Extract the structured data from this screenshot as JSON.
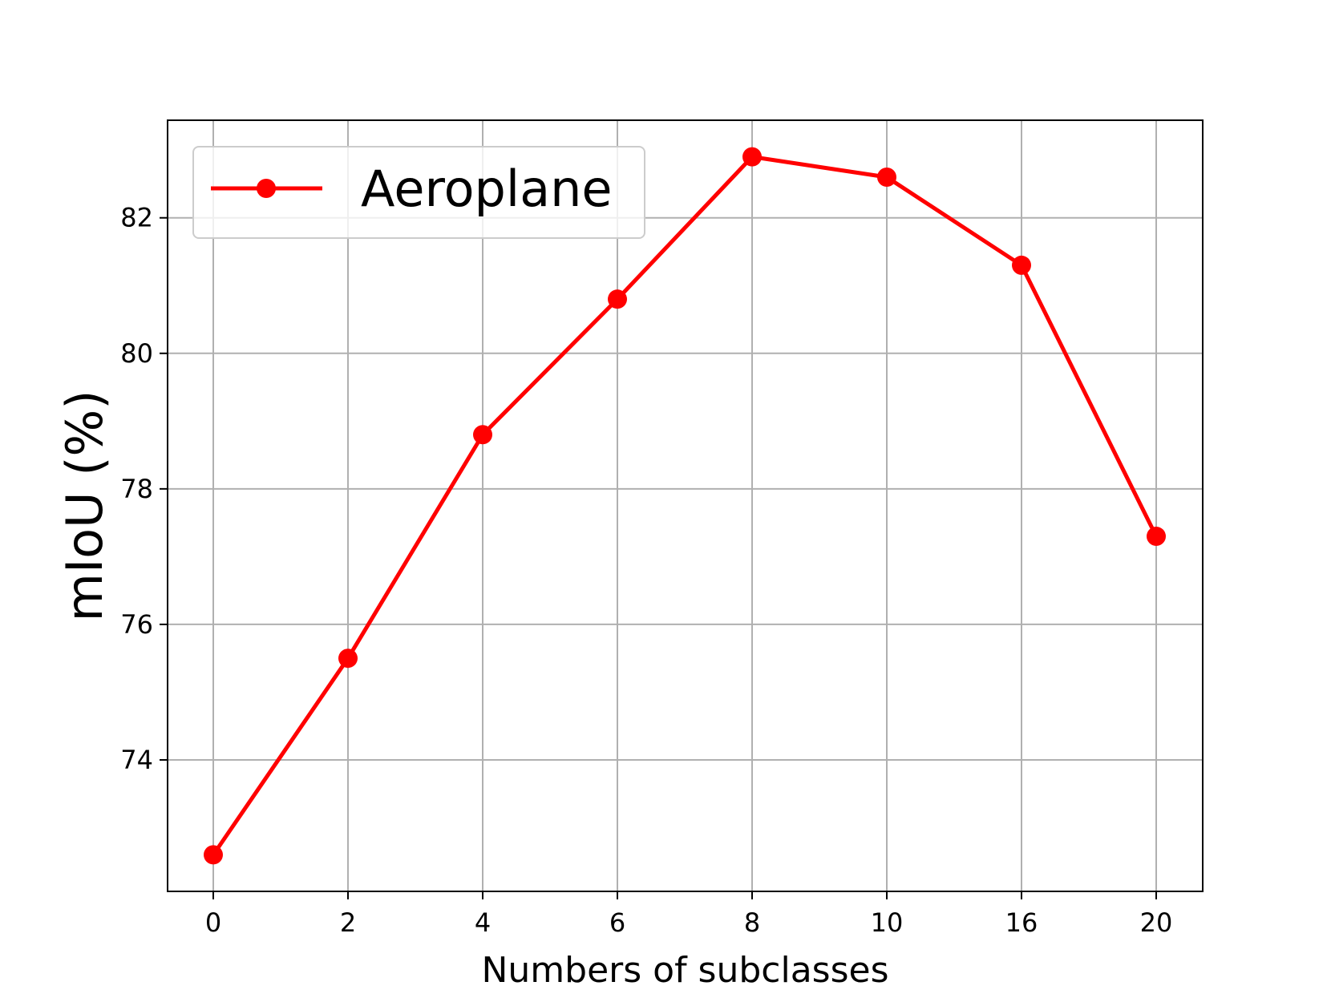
{
  "chart_data": {
    "type": "line",
    "title": "",
    "xlabel": "Numbers of subclasses",
    "ylabel": "mIoU (%)",
    "categories": [
      "0",
      "2",
      "4",
      "6",
      "8",
      "10",
      "16",
      "20"
    ],
    "series": [
      {
        "name": "Aeroplane",
        "values": [
          72.6,
          75.5,
          78.8,
          80.8,
          82.9,
          82.6,
          81.3,
          77.3
        ],
        "color": "#ff0000",
        "marker": "circle"
      }
    ],
    "yticks": [
      74,
      76,
      78,
      80,
      82
    ],
    "ylim": [
      72.06,
      83.44
    ],
    "grid": true,
    "legend_position": "top-left"
  }
}
